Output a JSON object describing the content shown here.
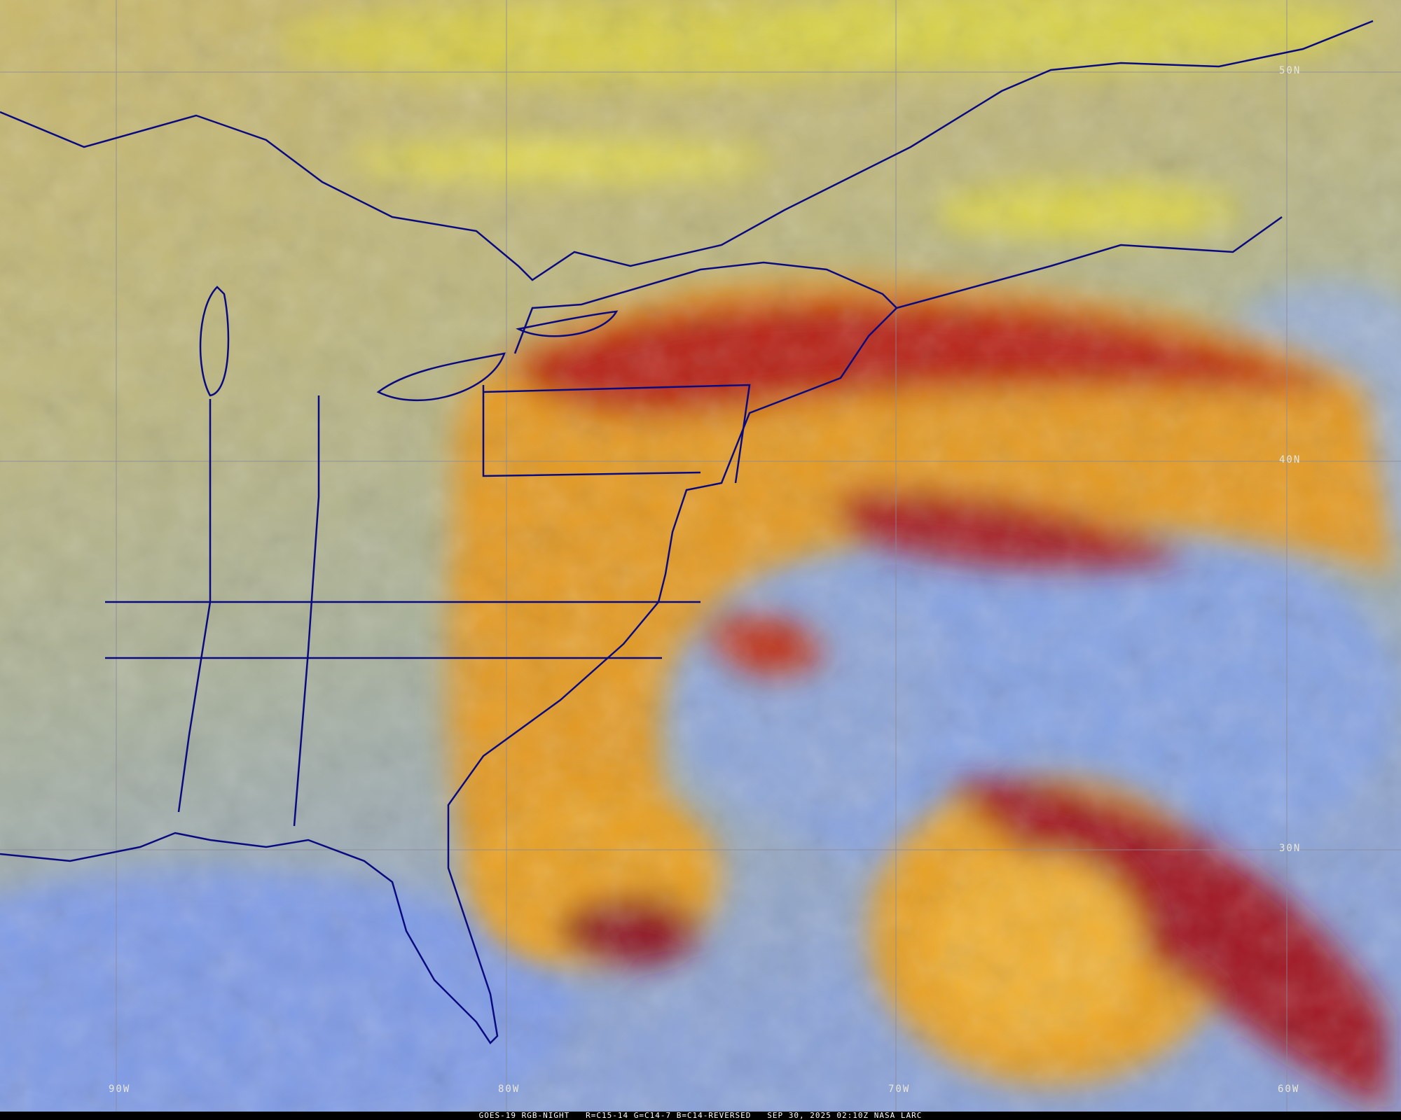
{
  "image": {
    "caption": "GOES-19 RGB-NIGHT   R=C15-14 G=C14-7 B=C14-REVERSED   SEP 30, 2025 02:10Z NASA LARC",
    "latitude_labels": [
      "50N",
      "40N",
      "30N"
    ],
    "longitude_labels": [
      "90W",
      "80W",
      "70W",
      "60W"
    ],
    "colors": {
      "land_clear": "#b8b88a",
      "ocean_clear": "#7f9ee0",
      "high_cloud_red": "#b01818",
      "cloud_orange": "#f0a020",
      "cloud_yellow": "#d8d840",
      "boundaries": "#0a0a80",
      "gridlines": "#8a8a9a"
    }
  }
}
